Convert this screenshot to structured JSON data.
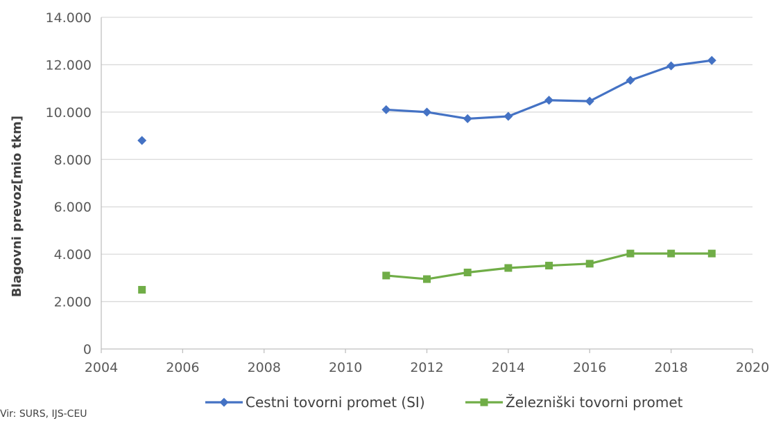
{
  "chart_data": {
    "type": "line",
    "title": "",
    "xlabel": "",
    "ylabel": "Blagovni prevoz[mio tkm]",
    "xlim": [
      2004,
      2020
    ],
    "ylim": [
      0,
      14000
    ],
    "x_ticks": [
      2004,
      2006,
      2008,
      2010,
      2012,
      2014,
      2016,
      2018,
      2020
    ],
    "x_tick_labels": [
      "2004",
      "2006",
      "2008",
      "2010",
      "2012",
      "2014",
      "2016",
      "2018",
      "2020"
    ],
    "y_ticks": [
      0,
      2000,
      4000,
      6000,
      8000,
      10000,
      12000,
      14000
    ],
    "y_tick_labels": [
      "0",
      "2.000",
      "4.000",
      "6.000",
      "8.000",
      "10.000",
      "12.000",
      "14.000"
    ],
    "grid": true,
    "legend_position": "bottom",
    "series": [
      {
        "name": "Cestni tovorni promet (SI)",
        "color": "#4472C4",
        "marker": "diamond",
        "points": [
          [
            2005,
            8800
          ],
          [
            2011,
            10100
          ],
          [
            2012,
            10000
          ],
          [
            2013,
            9720
          ],
          [
            2014,
            9820
          ],
          [
            2015,
            10500
          ],
          [
            2016,
            10460
          ],
          [
            2017,
            11340
          ],
          [
            2018,
            11950
          ],
          [
            2019,
            12180
          ]
        ]
      },
      {
        "name": "Železniški tovorni promet",
        "color": "#70AD47",
        "marker": "square",
        "points": [
          [
            2005,
            2500
          ],
          [
            2011,
            3100
          ],
          [
            2012,
            2950
          ],
          [
            2013,
            3230
          ],
          [
            2014,
            3420
          ],
          [
            2015,
            3520
          ],
          [
            2016,
            3600
          ],
          [
            2017,
            4030
          ],
          [
            2018,
            4030
          ],
          [
            2019,
            4030
          ]
        ]
      }
    ],
    "source_note": "Vir: SURS, IJS-CEU"
  }
}
